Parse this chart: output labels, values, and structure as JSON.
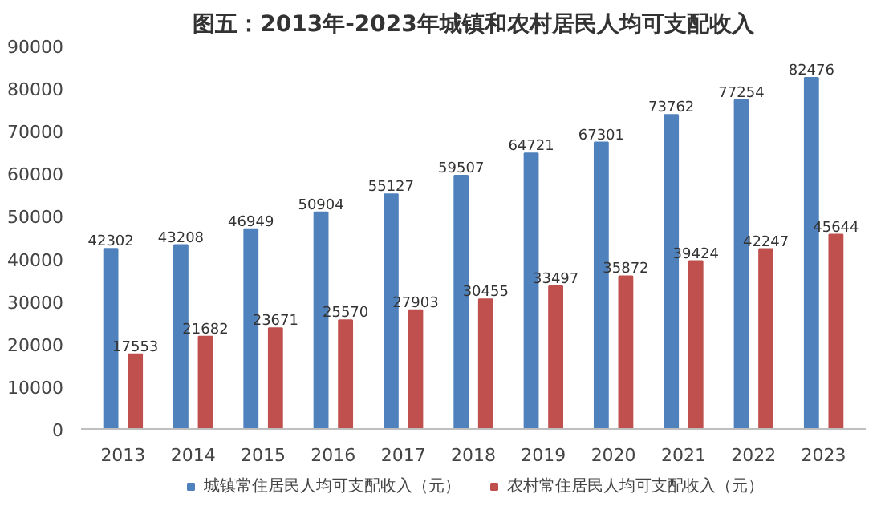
{
  "chart_data": {
    "type": "bar",
    "title": "图五：2013年-2023年城镇和农村居民人均可支配收入",
    "categories": [
      "2013",
      "2014",
      "2015",
      "2016",
      "2017",
      "2018",
      "2019",
      "2020",
      "2021",
      "2022",
      "2023"
    ],
    "series": [
      {
        "name": "城镇常住居民人均可支配收入（元）",
        "color": "#4f81bd",
        "values": [
          42302,
          43208,
          46949,
          50904,
          55127,
          59507,
          64721,
          67301,
          73762,
          77254,
          82476
        ]
      },
      {
        "name": "农村常住居民人均可支配收入（元）",
        "color": "#c0504d",
        "values": [
          17553,
          21682,
          23671,
          25570,
          27903,
          30455,
          33497,
          35872,
          39424,
          42247,
          45644
        ]
      }
    ],
    "ylim": [
      0,
      90000
    ],
    "yticks": [
      0,
      10000,
      20000,
      30000,
      40000,
      50000,
      60000,
      70000,
      80000,
      90000
    ],
    "grid": false,
    "legend": "bottom",
    "data_labels": true
  }
}
